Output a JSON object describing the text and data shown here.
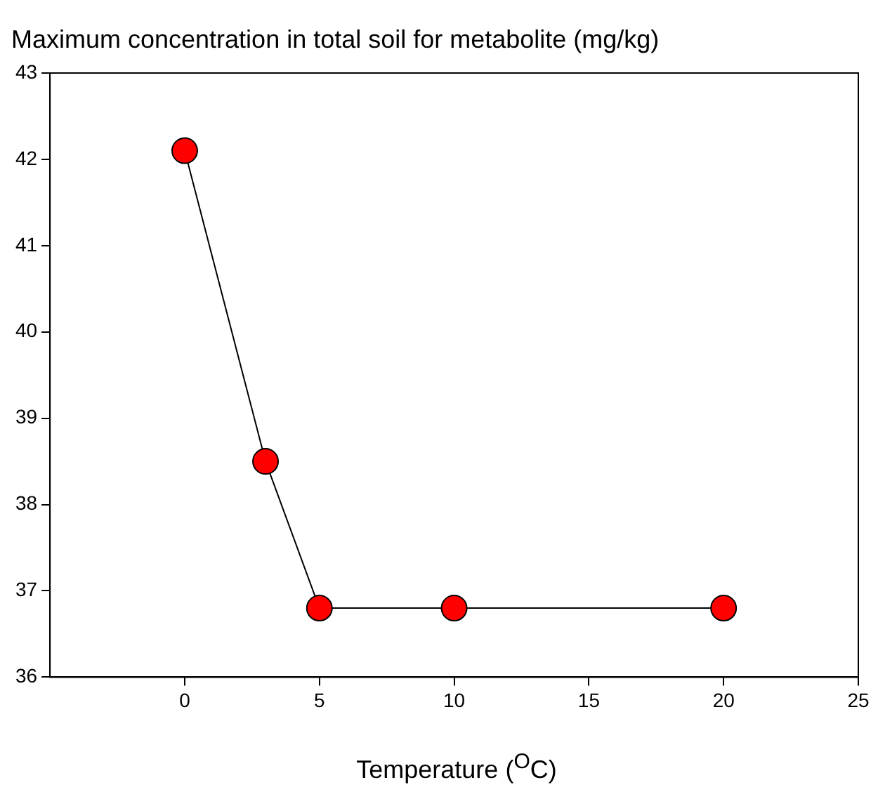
{
  "chart_data": {
    "type": "line",
    "title": "Maximum concentration in total soil for metabolite (mg/kg)",
    "xlabel": "Temperature ($^{O}$C)",
    "x": [
      0,
      3,
      5,
      10,
      20
    ],
    "series": [
      {
        "color": "#ff0000",
        "values": [
          42.1,
          38.5,
          36.8,
          36.8,
          36.8
        ]
      }
    ],
    "xlim": [
      -5,
      25
    ],
    "xticks": [
      0,
      5,
      10,
      15,
      20,
      25
    ],
    "ylim": [
      36,
      43
    ],
    "yticks": [
      36,
      37,
      38,
      39,
      40,
      41,
      42,
      43
    ],
    "grid": false,
    "legend": false,
    "marker": "circle",
    "line_style": "solid"
  }
}
